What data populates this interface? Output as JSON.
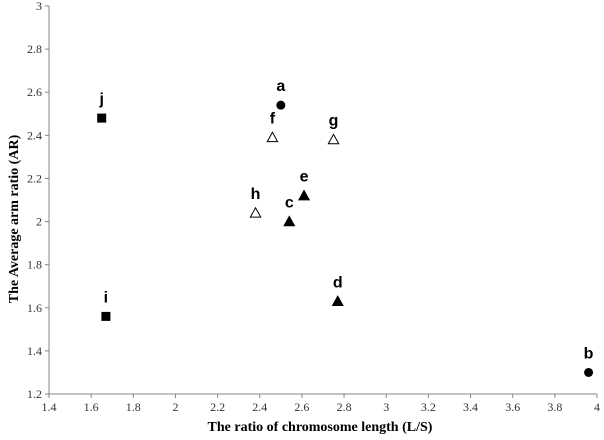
{
  "chart_data": {
    "type": "scatter",
    "xlabel": "The ratio of chromosome length (L/S)",
    "ylabel": "The Average  arm ratio (AR)",
    "xlim": [
      1.4,
      4
    ],
    "ylim": [
      1.2,
      3
    ],
    "x_ticks": [
      "1.4",
      "1.6",
      "1.8",
      "2",
      "2.2",
      "2.4",
      "2.6",
      "2.8",
      "3",
      "3.2",
      "3.4",
      "3.6",
      "3.8",
      "4"
    ],
    "y_ticks": [
      "1.2",
      "1.4",
      "1.6",
      "1.8",
      "2",
      "2.2",
      "2.4",
      "2.6",
      "2.8",
      "3"
    ],
    "grid": false,
    "legend": "none",
    "points": [
      {
        "label": "a",
        "x": 2.5,
        "y": 2.54,
        "marker": "filled-circle"
      },
      {
        "label": "b",
        "x": 3.96,
        "y": 1.3,
        "marker": "filled-circle"
      },
      {
        "label": "c",
        "x": 2.54,
        "y": 2.0,
        "marker": "filled-triangle"
      },
      {
        "label": "d",
        "x": 2.77,
        "y": 1.63,
        "marker": "filled-triangle"
      },
      {
        "label": "e",
        "x": 2.61,
        "y": 2.12,
        "marker": "filled-triangle"
      },
      {
        "label": "f",
        "x": 2.46,
        "y": 2.39,
        "marker": "open-triangle"
      },
      {
        "label": "g",
        "x": 2.75,
        "y": 2.38,
        "marker": "open-triangle"
      },
      {
        "label": "h",
        "x": 2.38,
        "y": 2.04,
        "marker": "open-triangle"
      },
      {
        "label": "i",
        "x": 1.67,
        "y": 1.56,
        "marker": "filled-square"
      },
      {
        "label": "j",
        "x": 1.65,
        "y": 2.48,
        "marker": "filled-square"
      }
    ],
    "colors": {
      "marker": "#000000",
      "axis": "#868686"
    }
  }
}
